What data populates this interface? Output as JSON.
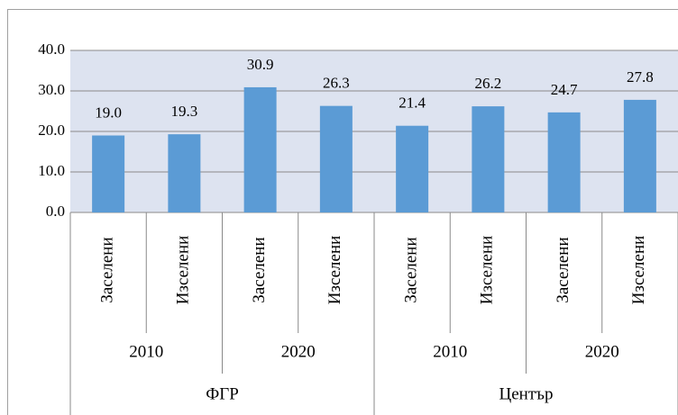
{
  "chart_data": {
    "type": "bar",
    "categories": [
      "Заселени",
      "Изселени",
      "Заселени",
      "Изселени",
      "Заселени",
      "Изселени",
      "Заселени",
      "Изселени"
    ],
    "group_labels": [
      "2010",
      "2020",
      "2010",
      "2020"
    ],
    "supergroup_labels": [
      "ФГР",
      "Център"
    ],
    "values": [
      19.0,
      19.3,
      30.9,
      26.3,
      21.4,
      26.2,
      24.7,
      27.8
    ],
    "value_labels": [
      "19.0",
      "19.3",
      "30.9",
      "26.3",
      "21.4",
      "26.2",
      "24.7",
      "27.8"
    ],
    "color": "#5b9bd5",
    "ylim": [
      0,
      40
    ],
    "yticks": [
      {
        "value": 0,
        "label": "0.0"
      },
      {
        "value": 10,
        "label": "10.0"
      },
      {
        "value": 20,
        "label": "20.0"
      },
      {
        "value": 30,
        "label": "30.0"
      },
      {
        "value": 40,
        "label": "40.0"
      }
    ],
    "grid": true
  }
}
